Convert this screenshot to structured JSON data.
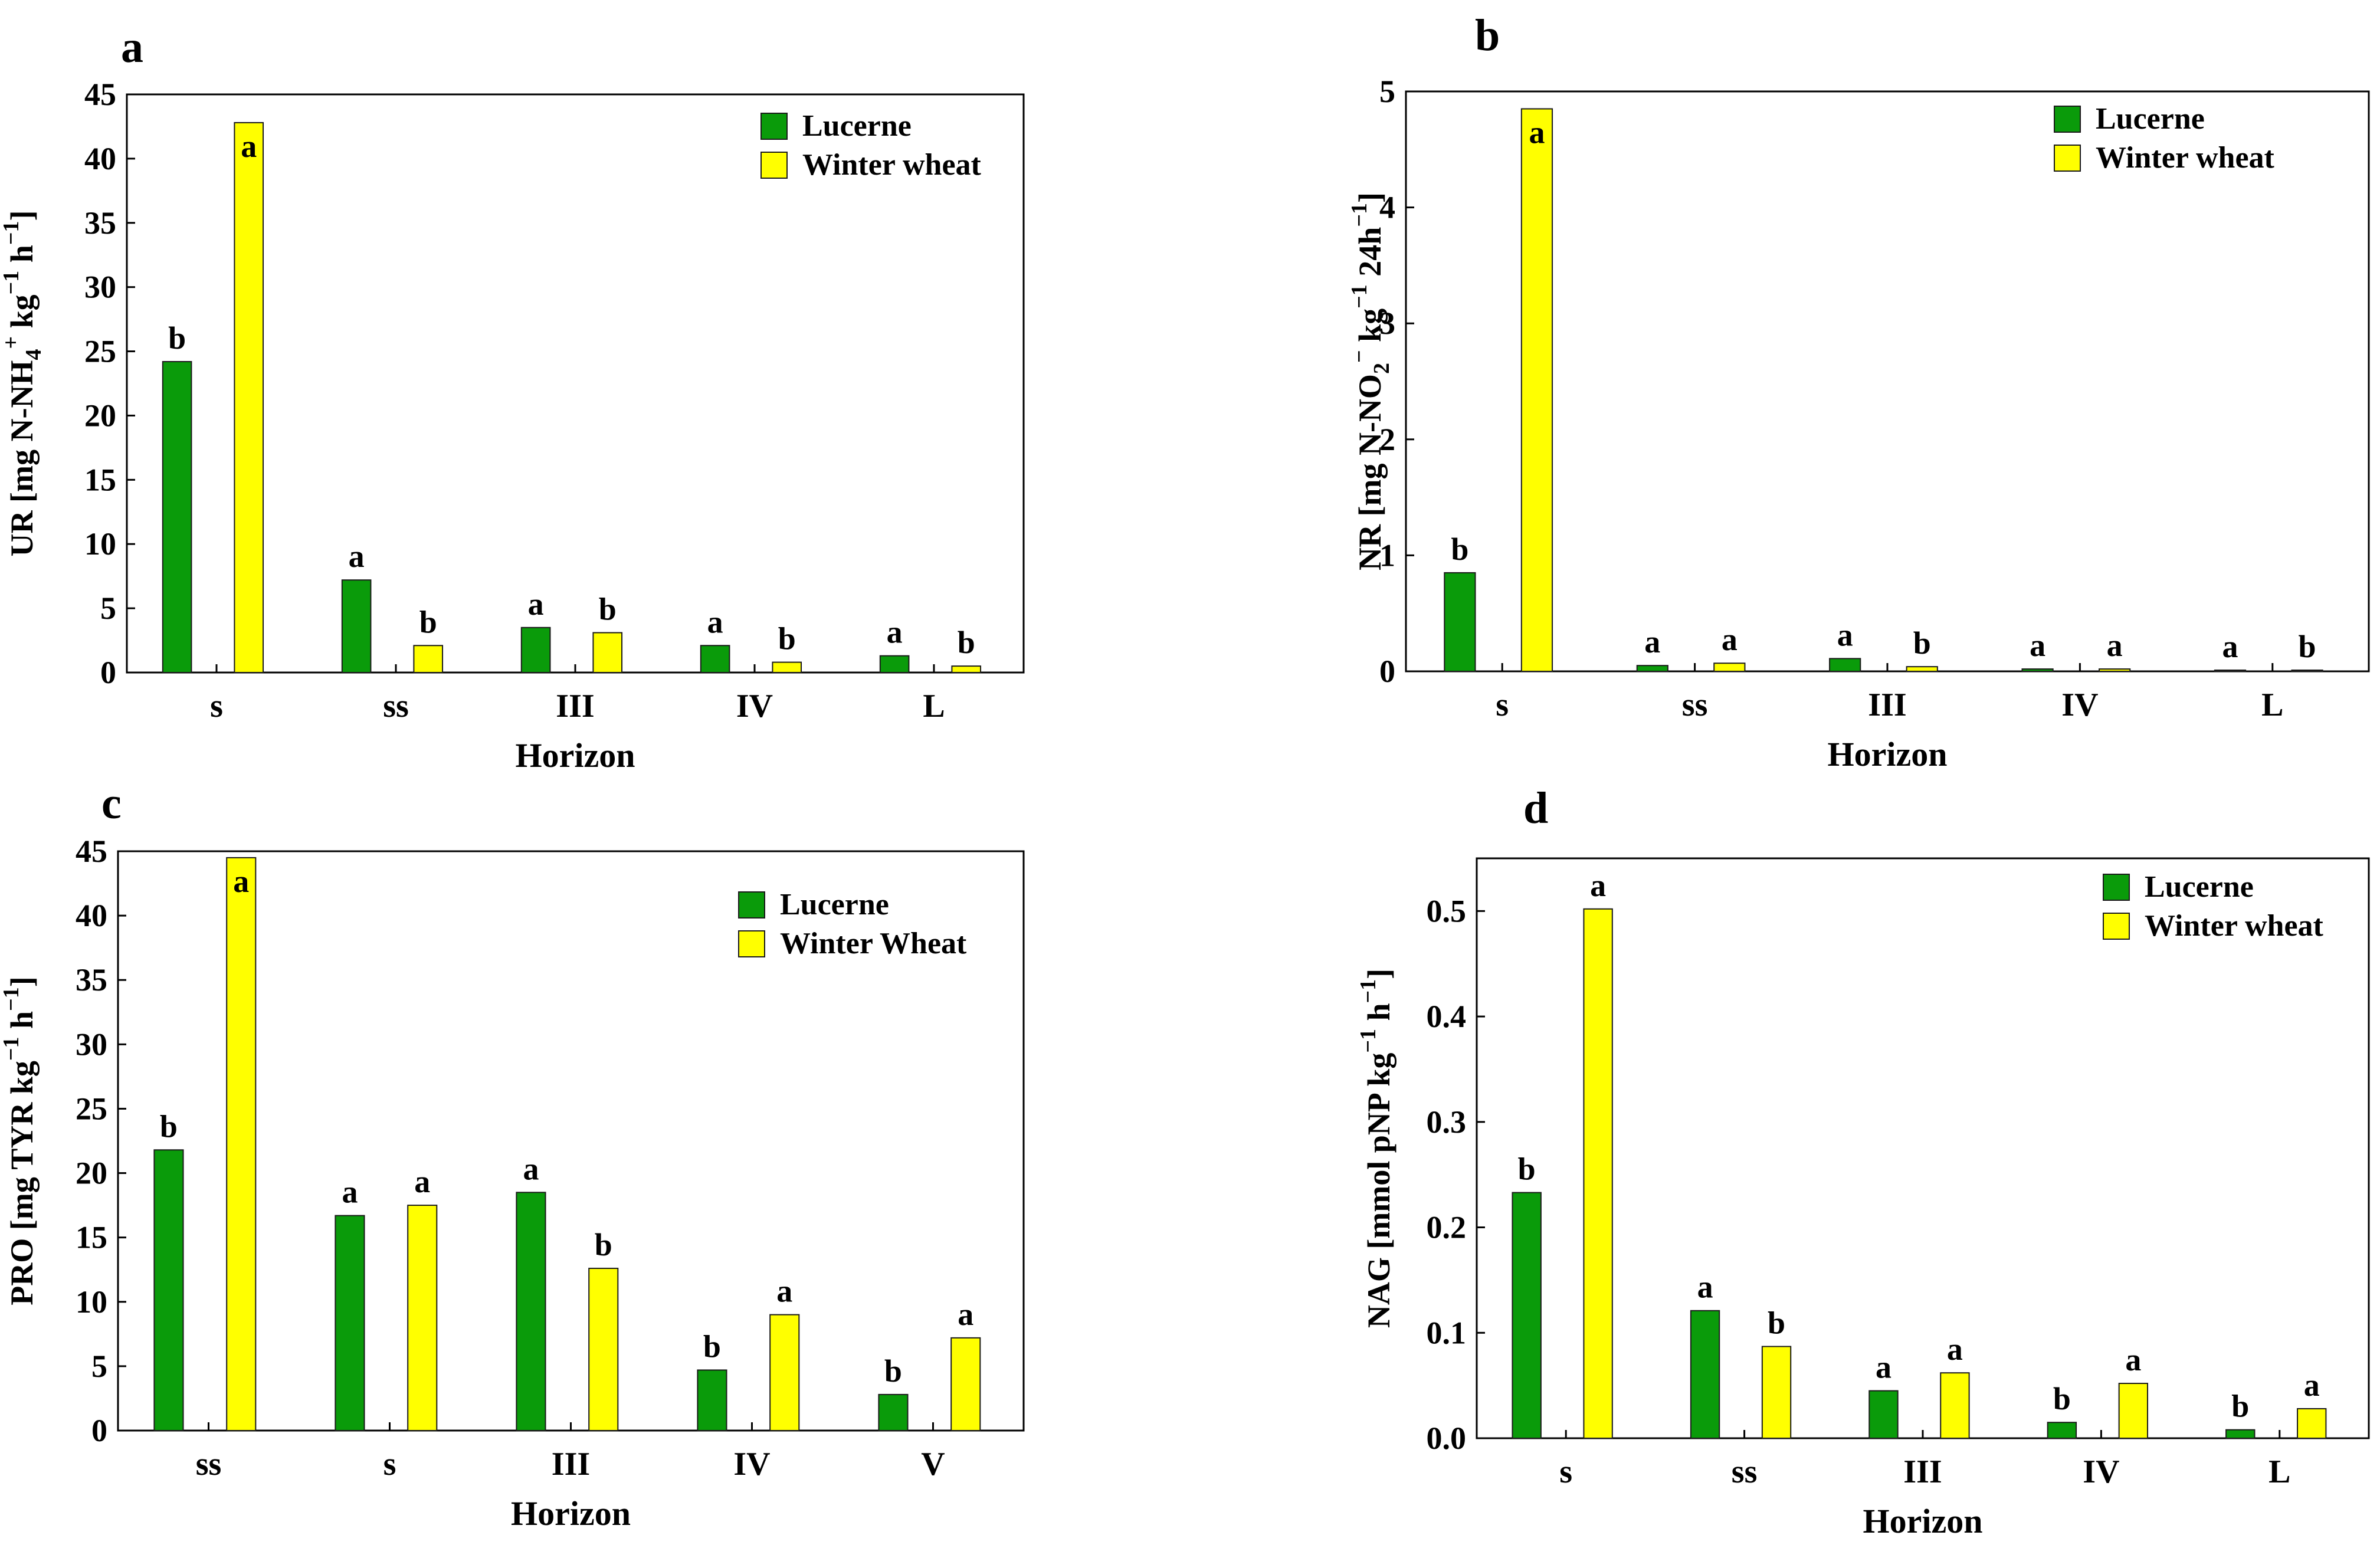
{
  "chart_data": [
    {
      "panel": "a",
      "type": "bar",
      "categories": [
        "s",
        "ss",
        "III",
        "IV",
        "L"
      ],
      "series": [
        {
          "name": "Lucerne",
          "values": [
            24.2,
            7.2,
            3.5,
            2.1,
            1.3
          ],
          "letters": [
            "b",
            "a",
            "a",
            "a",
            "a"
          ]
        },
        {
          "name": "Winter wheat",
          "values": [
            42.8,
            2.1,
            3.1,
            0.8,
            0.5
          ],
          "letters": [
            "a",
            "b",
            "b",
            "b",
            "b"
          ]
        }
      ],
      "ylim": [
        0,
        45
      ],
      "yticks": [
        "0",
        "5",
        "10",
        "15",
        "20",
        "25",
        "30",
        "35",
        "40",
        "45"
      ],
      "xlabel": "Horizon",
      "ylabel": "UR [mg N-NH",
      "ylabel_parts": [
        "UR [mg N-NH",
        "4",
        "+",
        " kg",
        "−1",
        " h",
        "−1",
        "]"
      ],
      "legend": "top-right",
      "legend_labels": [
        "Lucerne",
        "Winter wheat"
      ],
      "grid": false
    },
    {
      "panel": "b",
      "type": "bar",
      "categories": [
        "s",
        "ss",
        "III",
        "IV",
        "L"
      ],
      "series": [
        {
          "name": "Lucerne",
          "values": [
            0.85,
            0.05,
            0.11,
            0.02,
            0.01
          ],
          "letters": [
            "b",
            "a",
            "a",
            "a",
            "a"
          ]
        },
        {
          "name": "Winter wheat",
          "values": [
            4.85,
            0.07,
            0.04,
            0.02,
            0.01
          ],
          "letters": [
            "a",
            "a",
            "b",
            "a",
            "b"
          ]
        }
      ],
      "ylim": [
        0,
        5
      ],
      "yticks": [
        "0",
        "1",
        "2",
        "3",
        "4",
        "5"
      ],
      "xlabel": "Horizon",
      "ylabel_parts": [
        "NR [mg N-NO",
        "2",
        "−",
        " kg",
        "−1",
        " 24h",
        "−1",
        "]"
      ],
      "legend": "top-right",
      "legend_labels": [
        "Lucerne",
        "Winter wheat"
      ],
      "grid": false
    },
    {
      "panel": "c",
      "type": "bar",
      "categories": [
        "ss",
        "s",
        "III",
        "IV",
        "V"
      ],
      "series": [
        {
          "name": "Lucerne",
          "values": [
            21.8,
            16.7,
            18.5,
            4.7,
            2.8
          ],
          "letters": [
            "b",
            "a",
            "a",
            "b",
            "b"
          ]
        },
        {
          "name": "Winter Wheat",
          "values": [
            44.5,
            17.5,
            12.6,
            9.0,
            7.2
          ],
          "letters": [
            "a",
            "a",
            "b",
            "a",
            "a"
          ]
        }
      ],
      "ylim": [
        0,
        45
      ],
      "yticks": [
        "0",
        "5",
        "10",
        "15",
        "20",
        "25",
        "30",
        "35",
        "40",
        "45"
      ],
      "xlabel": "Horizon",
      "ylabel_parts": [
        "PRO [mg TYR kg",
        "",
        "",
        "",
        "−1",
        " h",
        "−1",
        "]"
      ],
      "legend": "top-right",
      "legend_labels": [
        "Lucerne",
        "Winter Wheat"
      ],
      "grid": false
    },
    {
      "panel": "d",
      "type": "bar",
      "categories": [
        "s",
        "ss",
        "III",
        "IV",
        "L"
      ],
      "series": [
        {
          "name": "Lucerne",
          "values": [
            0.233,
            0.121,
            0.045,
            0.015,
            0.008
          ],
          "letters": [
            "b",
            "a",
            "a",
            "b",
            "b"
          ]
        },
        {
          "name": "Winter wheat",
          "values": [
            0.502,
            0.087,
            0.062,
            0.052,
            0.028
          ],
          "letters": [
            "a",
            "b",
            "a",
            "a",
            "a"
          ]
        }
      ],
      "ylim": [
        0,
        0.55
      ],
      "yticks": [
        "0.0",
        "0.1",
        "0.2",
        "0.3",
        "0.4",
        "0.5"
      ],
      "yticks_values": [
        0,
        0.1,
        0.2,
        0.3,
        0.4,
        0.5
      ],
      "xlabel": "Horizon",
      "ylabel_parts": [
        "NAG [mmol pNP kg",
        "",
        "",
        "",
        "−1",
        " h",
        "−1",
        "]"
      ],
      "legend": "top-right",
      "legend_labels": [
        "Lucerne",
        "Winter wheat"
      ],
      "grid": false
    }
  ],
  "colors": {
    "lucerne": "#0a9b0a",
    "winter_wheat": "#ffff00",
    "bar_edge": "#1a1a1a"
  }
}
